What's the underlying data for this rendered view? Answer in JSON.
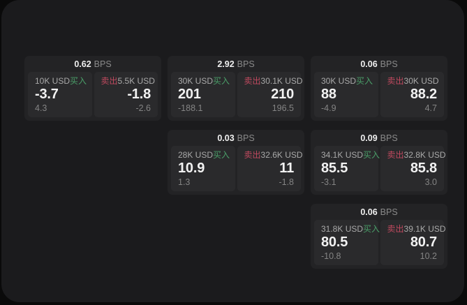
{
  "labels": {
    "bps_unit": "BPS",
    "buy": "买入",
    "sell": "卖出"
  },
  "colors": {
    "buy": "#4a9e68",
    "sell": "#c0495f",
    "panel_background": "#1b1b1d",
    "card_background": "#232325",
    "cell_background": "#2a2a2c"
  },
  "cards": [
    {
      "bps": "0.62",
      "grid": {
        "row": 1,
        "col": 1
      },
      "buy": {
        "amount": "10K USD",
        "price": "-3.7",
        "delta": "4.3"
      },
      "sell": {
        "amount": "5.5K USD",
        "price": "-1.8",
        "delta": "-2.6"
      }
    },
    {
      "bps": "2.92",
      "grid": {
        "row": 1,
        "col": 2
      },
      "buy": {
        "amount": "30K USD",
        "price": "201",
        "delta": "-188.1"
      },
      "sell": {
        "amount": "30.1K USD",
        "price": "210",
        "delta": "196.5"
      }
    },
    {
      "bps": "0.06",
      "grid": {
        "row": 1,
        "col": 3
      },
      "buy": {
        "amount": "30K USD",
        "price": "88",
        "delta": "-4.9"
      },
      "sell": {
        "amount": "30K USD",
        "price": "88.2",
        "delta": "4.7"
      }
    },
    {
      "bps": "0.03",
      "grid": {
        "row": 2,
        "col": 2
      },
      "buy": {
        "amount": "28K USD",
        "price": "10.9",
        "delta": "1.3"
      },
      "sell": {
        "amount": "32.6K USD",
        "price": "11",
        "delta": "-1.8"
      }
    },
    {
      "bps": "0.09",
      "grid": {
        "row": 2,
        "col": 3
      },
      "buy": {
        "amount": "34.1K USD",
        "price": "85.5",
        "delta": "-3.1"
      },
      "sell": {
        "amount": "32.8K USD",
        "price": "85.8",
        "delta": "3.0"
      }
    },
    {
      "bps": "0.06",
      "grid": {
        "row": 3,
        "col": 3
      },
      "buy": {
        "amount": "31.8K USD",
        "price": "80.5",
        "delta": "-10.8"
      },
      "sell": {
        "amount": "39.1K USD",
        "price": "80.7",
        "delta": "10.2"
      }
    }
  ]
}
